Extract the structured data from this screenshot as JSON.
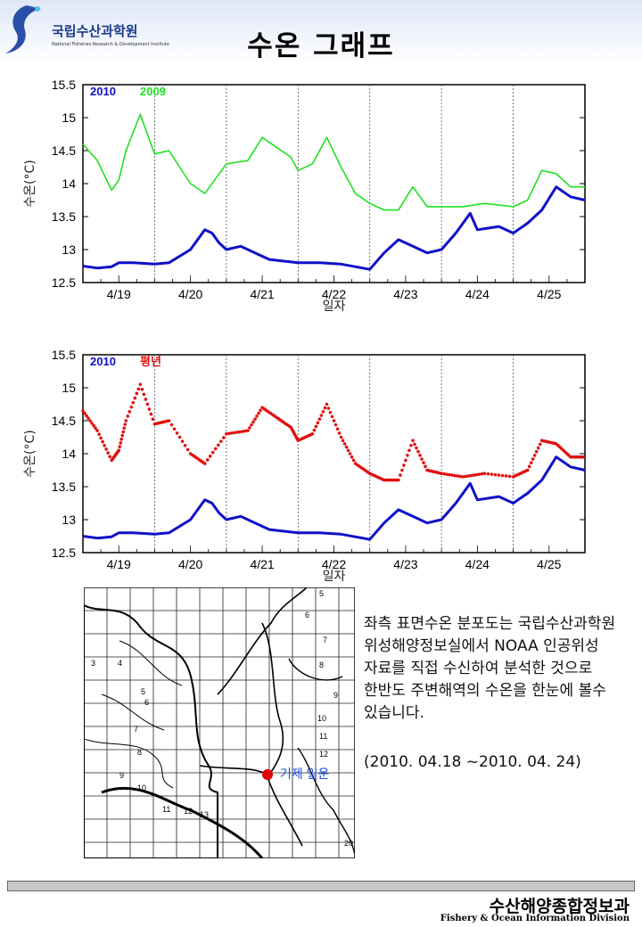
{
  "header": {
    "logo_kr": "국립수산과학원",
    "logo_en": "National Fisheries Research & Development Institute",
    "title": "수온 그래프"
  },
  "colors": {
    "series_2010": "#1010c8",
    "series_2009": "#20e020",
    "series_avg": "#e01010"
  },
  "chart_data": [
    {
      "type": "line",
      "xlabel": "일자",
      "ylabel": "수온(°C)",
      "ylim": [
        12.5,
        15.5
      ],
      "yticks": [
        12.5,
        13,
        13.5,
        14,
        14.5,
        15,
        15.5
      ],
      "xlim": [
        0,
        7
      ],
      "xtick_labels": [
        "4/19",
        "4/20",
        "4/21",
        "4/22",
        "4/23",
        "4/24",
        "4/25"
      ],
      "series": [
        {
          "name": "2010",
          "style": "line",
          "color": "#1010c8",
          "x": [
            0,
            0.2,
            0.4,
            0.5,
            0.7,
            1.0,
            1.2,
            1.5,
            1.7,
            1.8,
            1.9,
            2.0,
            2.2,
            2.4,
            2.6,
            3.0,
            3.3,
            3.6,
            4.0,
            4.2,
            4.4,
            4.6,
            4.8,
            5.0,
            5.2,
            5.4,
            5.5,
            5.8,
            6.0,
            6.2,
            6.4,
            6.6,
            6.8,
            7.0
          ],
          "y": [
            12.75,
            12.72,
            12.74,
            12.8,
            12.8,
            12.78,
            12.8,
            13.0,
            13.3,
            13.25,
            13.1,
            13.0,
            13.05,
            12.95,
            12.85,
            12.8,
            12.8,
            12.78,
            12.7,
            12.95,
            13.15,
            13.05,
            12.95,
            13.0,
            13.25,
            13.55,
            13.3,
            13.35,
            13.25,
            13.4,
            13.6,
            13.95,
            13.8,
            13.75
          ]
        },
        {
          "name": "2009",
          "style": "line",
          "color": "#20e020",
          "x": [
            0,
            0.2,
            0.4,
            0.5,
            0.6,
            0.8,
            1.0,
            1.2,
            1.5,
            1.7,
            2.0,
            2.3,
            2.5,
            2.7,
            2.9,
            3.0,
            3.2,
            3.4,
            3.6,
            3.8,
            4.0,
            4.2,
            4.4,
            4.6,
            4.8,
            5.0,
            5.3,
            5.6,
            6.0,
            6.2,
            6.4,
            6.6,
            6.8,
            7.0
          ],
          "y": [
            14.6,
            14.35,
            13.9,
            14.05,
            14.5,
            15.05,
            14.45,
            14.5,
            14.0,
            13.85,
            14.3,
            14.35,
            14.7,
            14.55,
            14.4,
            14.2,
            14.3,
            14.7,
            14.25,
            13.85,
            13.7,
            13.6,
            13.6,
            13.95,
            13.65,
            13.65,
            13.65,
            13.7,
            13.65,
            13.75,
            14.2,
            14.15,
            13.95,
            13.95
          ]
        }
      ]
    },
    {
      "type": "line",
      "xlabel": "일자",
      "ylabel": "수온(°C)",
      "ylim": [
        12.5,
        15.5
      ],
      "yticks": [
        12.5,
        13,
        13.5,
        14,
        14.5,
        15,
        15.5
      ],
      "xlim": [
        0,
        7
      ],
      "xtick_labels": [
        "4/19",
        "4/20",
        "4/21",
        "4/22",
        "4/23",
        "4/24",
        "4/25"
      ],
      "series": [
        {
          "name": "2010",
          "style": "line",
          "color": "#1010c8",
          "x": [
            0,
            0.2,
            0.4,
            0.5,
            0.7,
            1.0,
            1.2,
            1.5,
            1.7,
            1.8,
            1.9,
            2.0,
            2.2,
            2.4,
            2.6,
            3.0,
            3.3,
            3.6,
            4.0,
            4.2,
            4.4,
            4.6,
            4.8,
            5.0,
            5.2,
            5.4,
            5.5,
            5.8,
            6.0,
            6.2,
            6.4,
            6.6,
            6.8,
            7.0
          ],
          "y": [
            12.75,
            12.72,
            12.74,
            12.8,
            12.8,
            12.78,
            12.8,
            13.0,
            13.3,
            13.25,
            13.1,
            13.0,
            13.05,
            12.95,
            12.85,
            12.8,
            12.8,
            12.78,
            12.7,
            12.95,
            13.15,
            13.05,
            12.95,
            13.0,
            13.25,
            13.55,
            13.3,
            13.35,
            13.25,
            13.4,
            13.6,
            13.95,
            13.8,
            13.75
          ]
        },
        {
          "name": "평년",
          "style": "dots",
          "color": "#e01010",
          "x": [
            0,
            0.2,
            0.4,
            0.5,
            0.6,
            0.8,
            1.0,
            1.2,
            1.5,
            1.7,
            2.0,
            2.3,
            2.5,
            2.7,
            2.9,
            3.0,
            3.2,
            3.4,
            3.6,
            3.8,
            4.0,
            4.2,
            4.4,
            4.6,
            4.8,
            5.0,
            5.3,
            5.6,
            6.0,
            6.2,
            6.4,
            6.6,
            6.8,
            7.0
          ],
          "y": [
            14.65,
            14.35,
            13.9,
            14.05,
            14.5,
            15.05,
            14.45,
            14.5,
            14.0,
            13.85,
            14.3,
            14.35,
            14.7,
            14.55,
            14.4,
            14.2,
            14.3,
            14.75,
            14.25,
            13.85,
            13.7,
            13.6,
            13.6,
            14.2,
            13.75,
            13.7,
            13.65,
            13.7,
            13.65,
            13.75,
            14.2,
            14.15,
            13.95,
            13.95
          ]
        }
      ]
    }
  ],
  "map": {
    "marker_label": "거제 일운",
    "marker_color": "#e00000",
    "isotherm_labels": [
      "3",
      "4",
      "5",
      "6",
      "7",
      "8",
      "9",
      "10",
      "11",
      "12",
      "13",
      "5",
      "6",
      "7",
      "8",
      "9",
      "10",
      "11",
      "12",
      "20"
    ]
  },
  "description": {
    "text": "좌측 표면수온 분포도는 국립수산과학원 위성해양정보실에서 NOAA 인공위성 자료를 직접 수신하여 분석한 것으로 한반도 주변해역의 수온을 한눈에 볼수 있습니다.",
    "period": "(2010. 04.18 ~2010. 04. 24)"
  },
  "footer": {
    "kr": "수산해양종합정보과",
    "en": "Fishery & Ocean Information Division"
  }
}
